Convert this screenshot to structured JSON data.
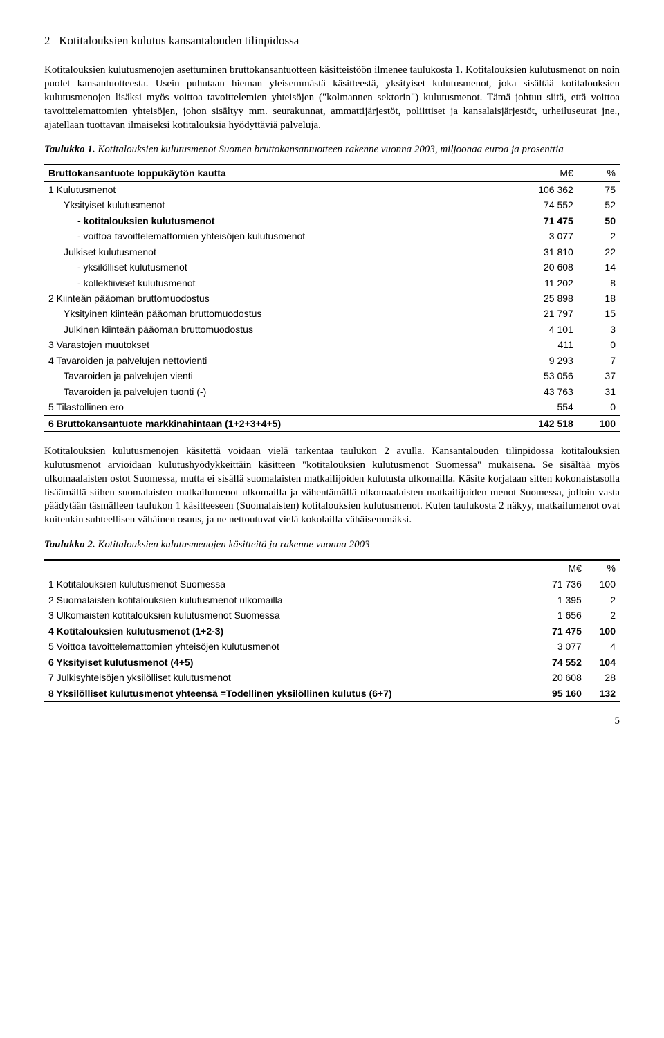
{
  "section": {
    "number": "2",
    "heading": "Kotitalouksien kulutus kansantalouden tilinpidossa",
    "para1": "Kotitalouksien kulutusmenojen asettuminen bruttokansantuotteen käsitteistöön ilmenee taulukosta 1. Kotitalouksien kulutusmenot on noin puolet kansantuotteesta. Usein puhutaan hieman yleisemmästä käsitteestä, yksityiset kulutusmenot, joka sisältää kotitalouksien kulutusmenojen lisäksi myös voittoa tavoittelemien yhteisöjen (\"kolmannen sektorin\") kulutusmenot. Tämä johtuu siitä, että voittoa tavoittelemattomien yhteisöjen, johon sisältyy mm. seurakunnat, ammattijärjestöt, poliittiset ja kansalaisjärjestöt, urheiluseurat jne., ajatellaan tuottavan ilmaiseksi kotitalouksia hyödyttäviä palveluja.",
    "para2": "Kotitalouksien kulutusmenojen käsitettä voidaan vielä tarkentaa taulukon 2 avulla. Kansantalouden tilinpidossa kotitalouksien kulutusmenot arvioidaan kulutushyödykkeittäin käsitteen \"kotitalouksien kulutusmenot Suomessa\" mukaisena. Se sisältää myös ulkomaalaisten ostot Suomessa, mutta ei sisällä suomalaisten matkailijoiden kulutusta ulkomailla. Käsite korjataan sitten kokonaistasolla lisäämällä siihen suomalaisten matkailumenot ulkomailla ja vähentämällä ulkomaalaisten matkailijoiden menot Suomessa, jolloin vasta päädytään täsmälleen taulukon 1 käsitteeseen (Suomalaisten) kotitalouksien kulutusmenot. Kuten taulukosta 2 näkyy, matkailumenot ovat kuitenkin suhteellisen vähäinen osuus, ja ne nettoutuvat vielä kokolailla vähäisemmäksi."
  },
  "table1": {
    "caption_bold": "Taulukko 1.",
    "caption_rest": " Kotitalouksien kulutusmenot Suomen bruttokansantuotteen rakenne vuonna 2003, miljoonaa euroa ja prosenttia",
    "header": {
      "label": "Bruttokansantuote loppukäytön kautta",
      "col1": "M€",
      "col2": "%"
    },
    "rows": [
      {
        "label": "1 Kulutusmenot",
        "v1": "106 362",
        "v2": "75",
        "indent": 0,
        "bold": false
      },
      {
        "label": "Yksityiset kulutusmenot",
        "v1": "74 552",
        "v2": "52",
        "indent": 1,
        "bold": false
      },
      {
        "label": "- kotitalouksien kulutusmenot",
        "v1": "71 475",
        "v2": "50",
        "indent": 2,
        "bold": true
      },
      {
        "label": "- voittoa tavoittelemattomien yhteisöjen kulutusmenot",
        "v1": "3 077",
        "v2": "2",
        "indent": 2,
        "bold": false
      },
      {
        "label": "Julkiset kulutusmenot",
        "v1": "31 810",
        "v2": "22",
        "indent": 1,
        "bold": false
      },
      {
        "label": "- yksilölliset kulutusmenot",
        "v1": "20 608",
        "v2": "14",
        "indent": 2,
        "bold": false
      },
      {
        "label": "- kollektiiviset kulutusmenot",
        "v1": "11 202",
        "v2": "8",
        "indent": 2,
        "bold": false
      },
      {
        "label": "2 Kiinteän pääoman bruttomuodostus",
        "v1": "25 898",
        "v2": "18",
        "indent": 0,
        "bold": false
      },
      {
        "label": "Yksityinen kiinteän pääoman bruttomuodostus",
        "v1": "21 797",
        "v2": "15",
        "indent": 1,
        "bold": false
      },
      {
        "label": "Julkinen kiinteän pääoman bruttomuodostus",
        "v1": "4 101",
        "v2": "3",
        "indent": 1,
        "bold": false
      },
      {
        "label": "3 Varastojen muutokset",
        "v1": "411",
        "v2": "0",
        "indent": 0,
        "bold": false
      },
      {
        "label": "4 Tavaroiden ja palvelujen nettovienti",
        "v1": "9 293",
        "v2": "7",
        "indent": 0,
        "bold": false
      },
      {
        "label": "Tavaroiden ja palvelujen vienti",
        "v1": "53 056",
        "v2": "37",
        "indent": 1,
        "bold": false
      },
      {
        "label": "Tavaroiden ja palvelujen tuonti (-)",
        "v1": "43 763",
        "v2": "31",
        "indent": 1,
        "bold": false
      },
      {
        "label": "5 Tilastollinen ero",
        "v1": "554",
        "v2": "0",
        "indent": 0,
        "bold": false
      }
    ],
    "total": {
      "label": "6 Bruttokansantuote markkinahintaan (1+2+3+4+5)",
      "v1": "142 518",
      "v2": "100"
    }
  },
  "table2": {
    "caption_bold": "Taulukko 2.",
    "caption_rest": " Kotitalouksien kulutusmenojen käsitteitä ja rakenne vuonna 2003",
    "header": {
      "col1": "M€",
      "col2": "%"
    },
    "rows": [
      {
        "label": "1 Kotitalouksien kulutusmenot Suomessa",
        "v1": "71 736",
        "v2": "100",
        "bold": false
      },
      {
        "label": "2 Suomalaisten kotitalouksien kulutusmenot ulkomailla",
        "v1": "1 395",
        "v2": "2",
        "bold": false
      },
      {
        "label": "3 Ulkomaisten kotitalouksien kulutusmenot Suomessa",
        "v1": "1 656",
        "v2": "2",
        "bold": false
      },
      {
        "label": "4 Kotitalouksien kulutusmenot (1+2-3)",
        "v1": "71 475",
        "v2": "100",
        "bold": true
      },
      {
        "label": "5 Voittoa tavoittelemattomien yhteisöjen kulutusmenot",
        "v1": "3 077",
        "v2": "4",
        "bold": false
      },
      {
        "label": "6 Yksityiset kulutusmenot (4+5)",
        "v1": "74 552",
        "v2": "104",
        "bold": true
      },
      {
        "label": "7 Julkisyhteisöjen yksilölliset kulutusmenot",
        "v1": "20 608",
        "v2": "28",
        "bold": false
      },
      {
        "label": "8 Yksilölliset kulutusmenot yhteensä =Todellinen yksilöllinen kulutus (6+7)",
        "v1": "95 160",
        "v2": "132",
        "bold": true
      }
    ]
  },
  "page_number": "5"
}
